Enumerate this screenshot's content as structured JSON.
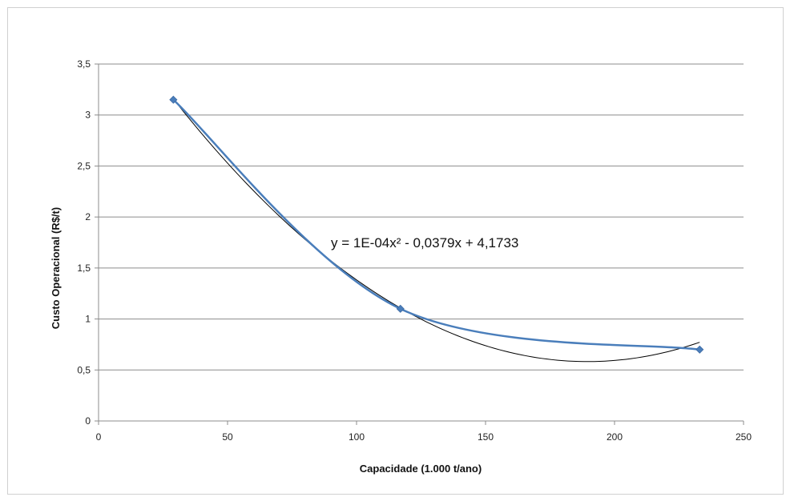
{
  "chart_data": {
    "type": "scatter",
    "title": "",
    "xlabel": "Capacidade (1.000 t/ano)",
    "ylabel": "Custo Operacional (R$/t)",
    "xlim": [
      0,
      250
    ],
    "ylim": [
      0,
      3.5
    ],
    "x_ticks": [
      0,
      50,
      100,
      150,
      200,
      250
    ],
    "x_tick_labels": [
      "0",
      "50",
      "100",
      "150",
      "200",
      "250"
    ],
    "y_ticks": [
      0,
      0.5,
      1,
      1.5,
      2,
      2.5,
      3,
      3.5
    ],
    "y_tick_labels": [
      "0",
      "0,5",
      "1",
      "1,5",
      "2",
      "2,5",
      "3",
      "3,5"
    ],
    "grid": "horizontal",
    "series": [
      {
        "x": [
          29,
          117,
          233
        ],
        "y": [
          3.15,
          1.1,
          0.7
        ],
        "color": "#4a7ebb",
        "line": "smooth",
        "marker": "diamond"
      }
    ],
    "trendline": {
      "type": "polynomial",
      "order": 2,
      "coefficients": [
        0.0001,
        -0.0379,
        4.1733
      ],
      "x_range": [
        29,
        233
      ],
      "color": "#000000",
      "equation_label": "y = 1E-04x² - 0,0379x + 4,1733"
    }
  }
}
